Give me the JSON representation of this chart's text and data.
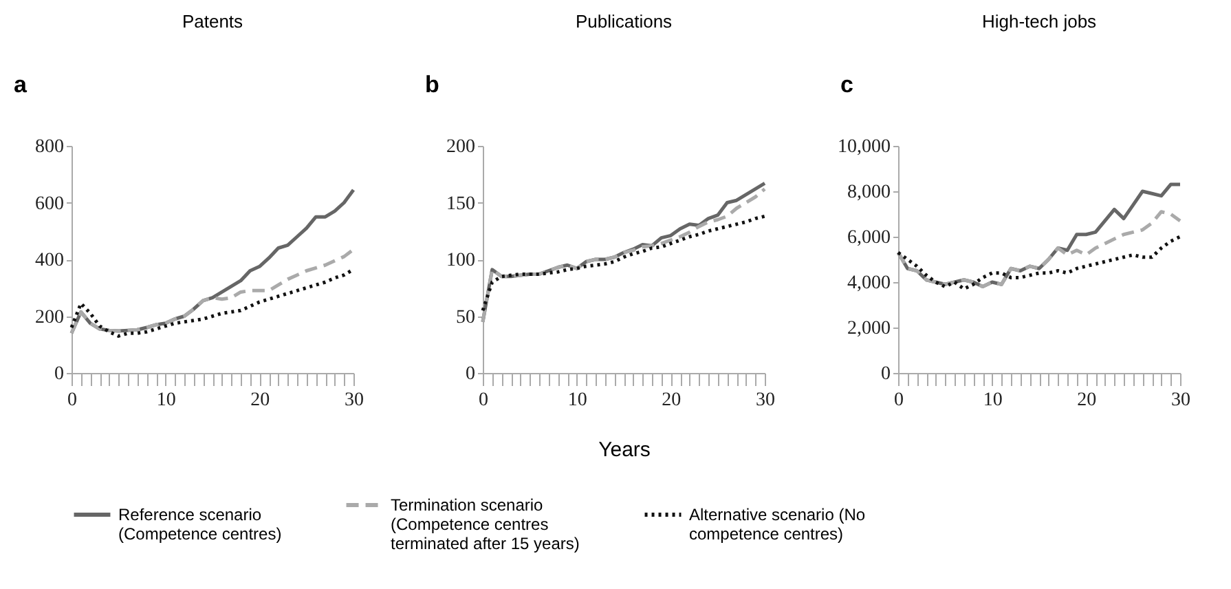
{
  "chart_data": [
    {
      "type": "line",
      "title": "Patents",
      "annotations": [
        "a"
      ],
      "x": [
        0,
        1,
        2,
        3,
        4,
        5,
        6,
        7,
        8,
        9,
        10,
        11,
        12,
        13,
        14,
        15,
        16,
        17,
        18,
        19,
        20,
        21,
        22,
        23,
        24,
        25,
        26,
        27,
        28,
        29,
        30
      ],
      "xlim": [
        0,
        30
      ],
      "xticks": [
        0,
        {
          "value": 1,
          "label": null
        },
        {
          "value": 2,
          "label": null
        },
        {
          "value": 3,
          "label": null
        },
        {
          "value": 4,
          "label": null
        },
        {
          "value": 5,
          "label": null
        },
        {
          "value": 6,
          "label": null
        },
        {
          "value": 7,
          "label": null
        },
        {
          "value": 8,
          "label": null
        },
        {
          "value": 9,
          "label": null
        },
        10,
        {
          "value": 11,
          "label": null
        },
        {
          "value": 12,
          "label": null
        },
        {
          "value": 13,
          "label": null
        },
        {
          "value": 14,
          "label": null
        },
        {
          "value": 15,
          "label": null
        },
        {
          "value": 16,
          "label": null
        },
        {
          "value": 17,
          "label": null
        },
        {
          "value": 18,
          "label": null
        },
        {
          "value": 19,
          "label": null
        },
        20,
        {
          "value": 21,
          "label": null
        },
        {
          "value": 22,
          "label": null
        },
        {
          "value": 23,
          "label": null
        },
        {
          "value": 24,
          "label": null
        },
        {
          "value": 25,
          "label": null
        },
        {
          "value": 26,
          "label": null
        },
        {
          "value": 27,
          "label": null
        },
        {
          "value": 28,
          "label": null
        },
        {
          "value": 29,
          "label": null
        },
        30
      ],
      "ylim": [
        0,
        800
      ],
      "yticks": [
        0,
        200,
        400,
        600,
        800
      ],
      "legend": "bottom",
      "marker": "none",
      "series": [
        {
          "name": "Reference scenario (Competence centres)",
          "color": "#666666",
          "line_style": "solid",
          "values": [
            140,
            215,
            175,
            155,
            150,
            148,
            150,
            152,
            160,
            170,
            175,
            190,
            200,
            225,
            255,
            265,
            285,
            305,
            325,
            360,
            375,
            405,
            440,
            450,
            480,
            510,
            550,
            550,
            570,
            600,
            645
          ]
        },
        {
          "name": "Termination scenario (Competence centres terminated after 15 years)",
          "color": "#aaaaaa",
          "line_style": "dashed",
          "values": [
            140,
            215,
            175,
            155,
            150,
            148,
            150,
            152,
            160,
            170,
            175,
            190,
            200,
            225,
            255,
            265,
            260,
            265,
            285,
            290,
            290,
            290,
            310,
            330,
            345,
            360,
            370,
            380,
            395,
            410,
            435
          ]
        },
        {
          "name": "Alternative scenario (No competence centres)",
          "color": "#111111",
          "line_style": "dotted",
          "values": [
            160,
            245,
            210,
            165,
            145,
            130,
            140,
            140,
            145,
            155,
            165,
            175,
            180,
            185,
            190,
            200,
            210,
            215,
            220,
            235,
            250,
            260,
            270,
            280,
            290,
            300,
            310,
            320,
            335,
            345,
            365
          ]
        }
      ]
    },
    {
      "type": "line",
      "title": "Publications",
      "xlabel": "Years",
      "annotations": [
        "b"
      ],
      "x": [
        0,
        1,
        2,
        3,
        4,
        5,
        6,
        7,
        8,
        9,
        10,
        11,
        12,
        13,
        14,
        15,
        16,
        17,
        18,
        19,
        20,
        21,
        22,
        23,
        24,
        25,
        26,
        27,
        28,
        29,
        30
      ],
      "xlim": [
        0,
        30
      ],
      "xticks": [
        0,
        {
          "value": 1,
          "label": null
        },
        {
          "value": 2,
          "label": null
        },
        {
          "value": 3,
          "label": null
        },
        {
          "value": 4,
          "label": null
        },
        {
          "value": 5,
          "label": null
        },
        {
          "value": 6,
          "label": null
        },
        {
          "value": 7,
          "label": null
        },
        {
          "value": 8,
          "label": null
        },
        {
          "value": 9,
          "label": null
        },
        10,
        {
          "value": 11,
          "label": null
        },
        {
          "value": 12,
          "label": null
        },
        {
          "value": 13,
          "label": null
        },
        {
          "value": 14,
          "label": null
        },
        {
          "value": 15,
          "label": null
        },
        {
          "value": 16,
          "label": null
        },
        {
          "value": 17,
          "label": null
        },
        {
          "value": 18,
          "label": null
        },
        {
          "value": 19,
          "label": null
        },
        20,
        {
          "value": 21,
          "label": null
        },
        {
          "value": 22,
          "label": null
        },
        {
          "value": 23,
          "label": null
        },
        {
          "value": 24,
          "label": null
        },
        {
          "value": 25,
          "label": null
        },
        {
          "value": 26,
          "label": null
        },
        {
          "value": 27,
          "label": null
        },
        {
          "value": 28,
          "label": null
        },
        {
          "value": 29,
          "label": null
        },
        30
      ],
      "ylim": [
        0,
        200
      ],
      "yticks": [
        0,
        50,
        100,
        150,
        200
      ],
      "legend": "bottom",
      "marker": "none",
      "series": [
        {
          "name": "Reference scenario (Competence centres)",
          "color": "#666666",
          "line_style": "solid",
          "values": [
            45,
            91,
            85,
            85,
            86,
            87,
            87,
            90,
            93,
            95,
            92,
            98,
            100,
            100,
            102,
            106,
            109,
            113,
            112,
            119,
            121,
            127,
            131,
            130,
            136,
            139,
            150,
            152,
            157,
            162,
            167
          ]
        },
        {
          "name": "Termination scenario (Competence centres terminated after 15 years)",
          "color": "#aaaaaa",
          "line_style": "dashed",
          "values": [
            45,
            91,
            85,
            85,
            86,
            87,
            87,
            90,
            93,
            95,
            92,
            98,
            100,
            100,
            102,
            106,
            108,
            111,
            112,
            114,
            117,
            120,
            124,
            129,
            133,
            135,
            138,
            145,
            150,
            155,
            162
          ]
        },
        {
          "name": "Alternative scenario (No competence centres)",
          "color": "#111111",
          "line_style": "dotted",
          "values": [
            55,
            80,
            85,
            86,
            87,
            87,
            87,
            88,
            89,
            91,
            92,
            94,
            95,
            96,
            98,
            102,
            105,
            107,
            110,
            111,
            114,
            117,
            120,
            122,
            125,
            127,
            129,
            131,
            133,
            136,
            138
          ]
        }
      ]
    },
    {
      "type": "line",
      "title": "High-tech jobs",
      "annotations": [
        "c"
      ],
      "x": [
        0,
        1,
        2,
        3,
        4,
        5,
        6,
        7,
        8,
        9,
        10,
        11,
        12,
        13,
        14,
        15,
        16,
        17,
        18,
        19,
        20,
        21,
        22,
        23,
        24,
        25,
        26,
        27,
        28,
        29,
        30
      ],
      "xlim": [
        0,
        30
      ],
      "xticks": [
        0,
        {
          "value": 1,
          "label": null
        },
        {
          "value": 2,
          "label": null
        },
        {
          "value": 3,
          "label": null
        },
        {
          "value": 4,
          "label": null
        },
        {
          "value": 5,
          "label": null
        },
        {
          "value": 6,
          "label": null
        },
        {
          "value": 7,
          "label": null
        },
        {
          "value": 8,
          "label": null
        },
        {
          "value": 9,
          "label": null
        },
        10,
        {
          "value": 11,
          "label": null
        },
        {
          "value": 12,
          "label": null
        },
        {
          "value": 13,
          "label": null
        },
        {
          "value": 14,
          "label": null
        },
        {
          "value": 15,
          "label": null
        },
        {
          "value": 16,
          "label": null
        },
        {
          "value": 17,
          "label": null
        },
        {
          "value": 18,
          "label": null
        },
        {
          "value": 19,
          "label": null
        },
        20,
        {
          "value": 21,
          "label": null
        },
        {
          "value": 22,
          "label": null
        },
        {
          "value": 23,
          "label": null
        },
        {
          "value": 24,
          "label": null
        },
        {
          "value": 25,
          "label": null
        },
        {
          "value": 26,
          "label": null
        },
        {
          "value": 27,
          "label": null
        },
        {
          "value": 28,
          "label": null
        },
        {
          "value": 29,
          "label": null
        },
        30
      ],
      "ylim": [
        0,
        10000
      ],
      "yticks": [
        0,
        {
          "value": 2000,
          "label": "2,000"
        },
        {
          "value": 4000,
          "label": "4,000"
        },
        {
          "value": 6000,
          "label": "6,000"
        },
        {
          "value": 8000,
          "label": "8,000"
        },
        {
          "value": 10000,
          "label": "10,000"
        }
      ],
      "legend": "bottom",
      "marker": "none",
      "series": [
        {
          "name": "Reference scenario (Competence centres)",
          "color": "#666666",
          "line_style": "solid",
          "values": [
            5300,
            4600,
            4500,
            4100,
            4000,
            3900,
            4000,
            4100,
            4000,
            3800,
            4000,
            3900,
            4600,
            4500,
            4700,
            4600,
            5000,
            5500,
            5400,
            6100,
            6100,
            6200,
            6700,
            7200,
            6800,
            7400,
            8000,
            7900,
            7800,
            8300,
            8300
          ]
        },
        {
          "name": "Termination scenario (Competence centres terminated after 15 years)",
          "color": "#aaaaaa",
          "line_style": "dashed",
          "values": [
            5300,
            4600,
            4500,
            4100,
            4000,
            3900,
            4000,
            4100,
            4000,
            3800,
            4000,
            3900,
            4600,
            4500,
            4700,
            4600,
            5000,
            5500,
            5200,
            5400,
            5200,
            5500,
            5700,
            5900,
            6100,
            6200,
            6300,
            6600,
            7100,
            7000,
            6700
          ]
        },
        {
          "name": "Alternative scenario (No competence centres)",
          "color": "#111111",
          "line_style": "dotted",
          "values": [
            5300,
            5000,
            4700,
            4300,
            4000,
            3800,
            4000,
            3700,
            3900,
            4200,
            4400,
            4400,
            4200,
            4200,
            4300,
            4400,
            4400,
            4500,
            4400,
            4600,
            4700,
            4800,
            4900,
            5000,
            5100,
            5200,
            5100,
            5100,
            5500,
            5800,
            6000
          ]
        }
      ]
    }
  ]
}
